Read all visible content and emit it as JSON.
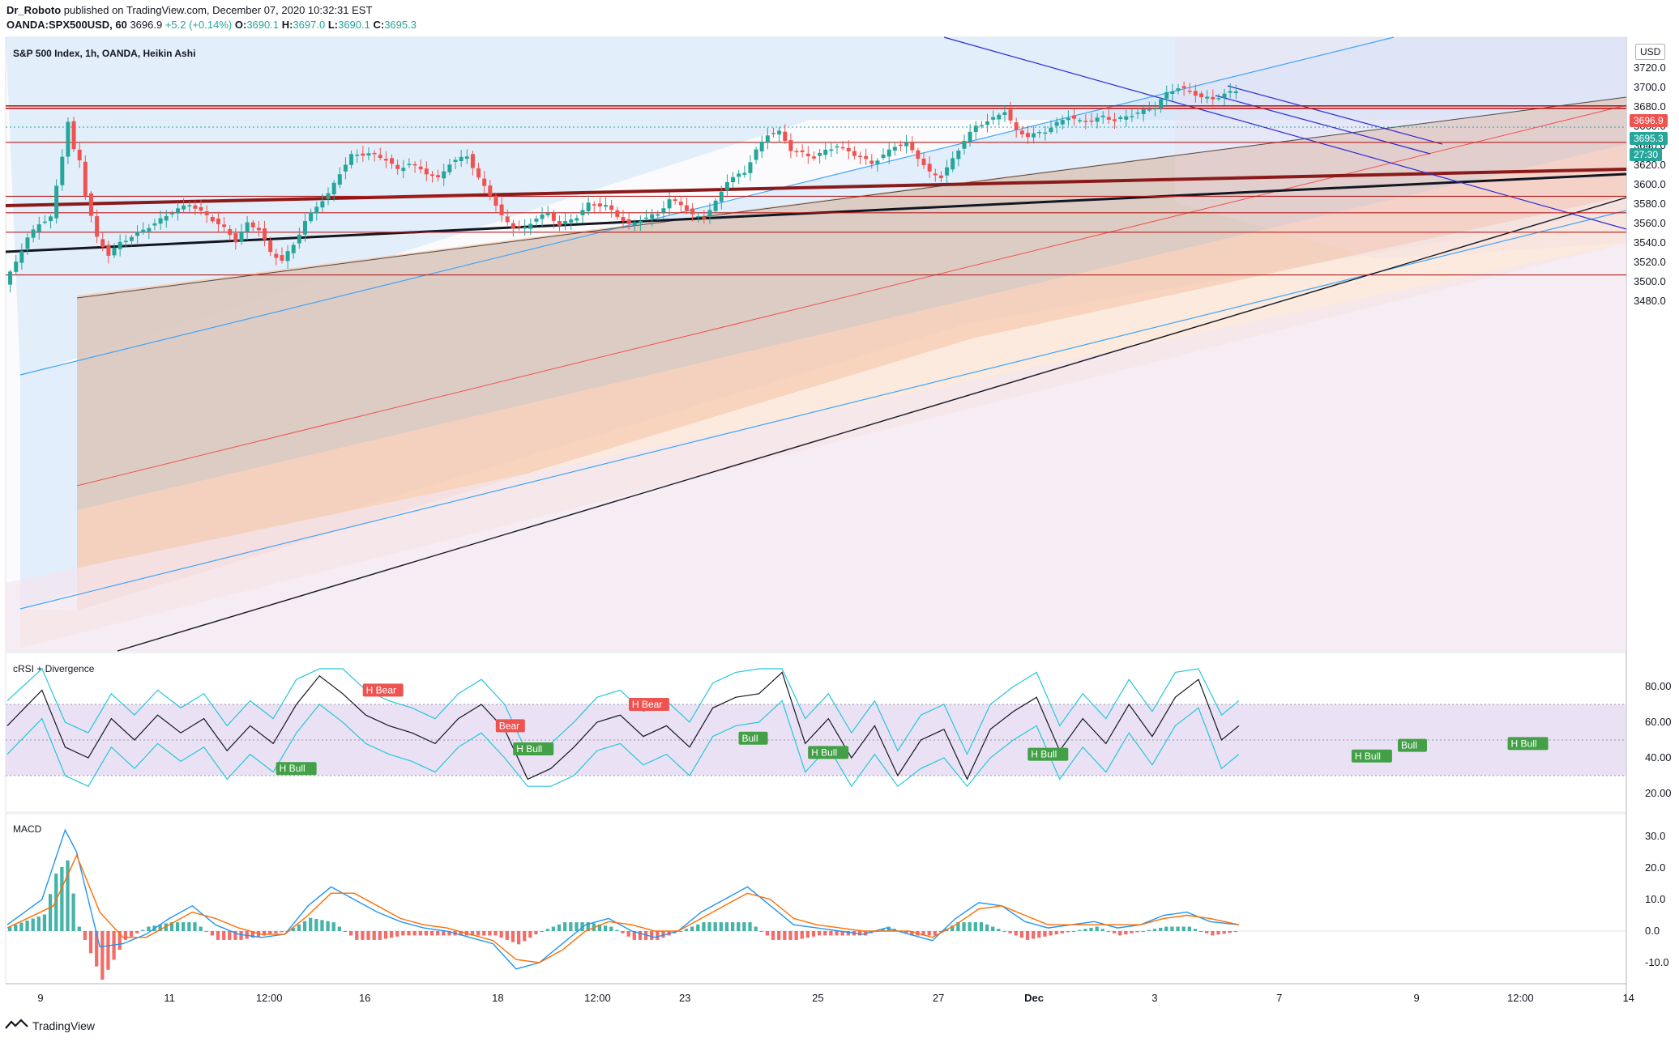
{
  "header": {
    "author": "Dr_Roboto",
    "published": "published on TradingView.com, December 07, 2020 10:32:31 EST",
    "symbol": "OANDA:SPX500USD, 60",
    "last": "3696.9",
    "change": "+5.2 (+0.14%)",
    "o_label": "O:",
    "o_value": "3690.1",
    "h_label": "H:",
    "h_value": "3697.0",
    "l_label": "L:",
    "l_value": "3690.1",
    "c_label": "C:",
    "c_value": "3695.3"
  },
  "main_pane": {
    "title": "S&P 500 Index, 1h, OANDA, Heikin Ashi",
    "currency": "USD",
    "price_ticks": [
      "3720.0",
      "3700.0",
      "3680.0",
      "3660.0",
      "3640.0",
      "3620.0",
      "3600.0",
      "3580.0",
      "3560.0",
      "3540.0",
      "3520.0",
      "3500.0",
      "3480.0"
    ],
    "price_tag_red": "3696.9",
    "price_tag_green": "3695.3",
    "countdown": "27:30",
    "horizontal_levels": [
      3681,
      3678.5,
      3643.5,
      3588,
      3571,
      3551,
      3507
    ]
  },
  "crsi_pane": {
    "title": "cRSI + Divergence",
    "ticks": [
      "80.00",
      "60.00",
      "40.00",
      "20.00"
    ],
    "labels": [
      {
        "text": "H Bear",
        "kind": "bear"
      },
      {
        "text": "Bear",
        "kind": "bear"
      },
      {
        "text": "H Bear",
        "kind": "bear"
      },
      {
        "text": "H Bull",
        "kind": "bull"
      },
      {
        "text": "H Bull",
        "kind": "bull"
      },
      {
        "text": "Bull",
        "kind": "bull"
      },
      {
        "text": "H Bull",
        "kind": "bull"
      },
      {
        "text": "H Bull",
        "kind": "bull"
      },
      {
        "text": "H Bull",
        "kind": "bull"
      },
      {
        "text": "Bull",
        "kind": "bull"
      },
      {
        "text": "H Bull",
        "kind": "bull"
      }
    ]
  },
  "macd_pane": {
    "title": "MACD",
    "ticks": [
      "30.0",
      "20.0",
      "10.0",
      "0.0",
      "-10.0"
    ]
  },
  "time_axis": [
    "9",
    "11",
    "12:00",
    "16",
    "18",
    "12:00",
    "23",
    "25",
    "27",
    "Dec",
    "3",
    "7",
    "9",
    "12:00",
    "14"
  ],
  "footer": {
    "brand": "TradingView"
  },
  "colors": {
    "bull": "#26a69a",
    "bear": "#ef5350",
    "level": "#b71c1c",
    "channel": "#42a5f5"
  },
  "chart_data": {
    "type": "candlestick",
    "title": "S&P 500 Index, 1h, OANDA, Heikin Ashi",
    "ylim": [
      3480,
      3725
    ],
    "x_tick_labels": [
      "9",
      "11",
      "12:00",
      "16",
      "18",
      "12:00",
      "23",
      "25",
      "27",
      "Dec",
      "3",
      "7",
      "9",
      "12:00",
      "14"
    ],
    "close_path": [
      [
        0,
        3497
      ],
      [
        4,
        3545
      ],
      [
        6,
        3560
      ],
      [
        8,
        3566
      ],
      [
        10,
        3630
      ],
      [
        11,
        3665
      ],
      [
        12,
        3635
      ],
      [
        13,
        3625
      ],
      [
        14,
        3590
      ],
      [
        16,
        3545
      ],
      [
        18,
        3528
      ],
      [
        20,
        3540
      ],
      [
        23,
        3550
      ],
      [
        26,
        3560
      ],
      [
        29,
        3572
      ],
      [
        32,
        3580
      ],
      [
        35,
        3568
      ],
      [
        38,
        3555
      ],
      [
        40,
        3542
      ],
      [
        42,
        3560
      ],
      [
        44,
        3554
      ],
      [
        46,
        3530
      ],
      [
        48,
        3522
      ],
      [
        50,
        3538
      ],
      [
        52,
        3562
      ],
      [
        54,
        3578
      ],
      [
        56,
        3590
      ],
      [
        58,
        3612
      ],
      [
        60,
        3630
      ],
      [
        63,
        3632
      ],
      [
        66,
        3626
      ],
      [
        68,
        3615
      ],
      [
        70,
        3622
      ],
      [
        73,
        3612
      ],
      [
        75,
        3606
      ],
      [
        77,
        3622
      ],
      [
        80,
        3630
      ],
      [
        82,
        3606
      ],
      [
        84,
        3590
      ],
      [
        86,
        3567
      ],
      [
        88,
        3556
      ],
      [
        90,
        3555
      ],
      [
        92,
        3566
      ],
      [
        94,
        3570
      ],
      [
        96,
        3558
      ],
      [
        99,
        3567
      ],
      [
        101,
        3580
      ],
      [
        104,
        3578
      ],
      [
        106,
        3568
      ],
      [
        108,
        3558
      ],
      [
        110,
        3564
      ],
      [
        113,
        3570
      ],
      [
        115,
        3584
      ],
      [
        117,
        3580
      ],
      [
        119,
        3568
      ],
      [
        121,
        3566
      ],
      [
        123,
        3582
      ],
      [
        125,
        3604
      ],
      [
        128,
        3613
      ],
      [
        130,
        3635
      ],
      [
        132,
        3652
      ],
      [
        134,
        3654
      ],
      [
        136,
        3636
      ],
      [
        138,
        3632
      ],
      [
        140,
        3628
      ],
      [
        142,
        3635
      ],
      [
        144,
        3640
      ],
      [
        146,
        3634
      ],
      [
        148,
        3628
      ],
      [
        150,
        3622
      ],
      [
        152,
        3630
      ],
      [
        154,
        3640
      ],
      [
        156,
        3642
      ],
      [
        158,
        3628
      ],
      [
        160,
        3612
      ],
      [
        162,
        3608
      ],
      [
        164,
        3626
      ],
      [
        166,
        3646
      ],
      [
        168,
        3660
      ],
      [
        171,
        3668
      ],
      [
        173,
        3676
      ],
      [
        175,
        3655
      ],
      [
        177,
        3650
      ],
      [
        180,
        3655
      ],
      [
        182,
        3663
      ],
      [
        184,
        3670
      ],
      [
        186,
        3665
      ],
      [
        188,
        3666
      ],
      [
        190,
        3670
      ],
      [
        192,
        3666
      ],
      [
        195,
        3672
      ],
      [
        197,
        3676
      ],
      [
        199,
        3680
      ],
      [
        201,
        3694
      ],
      [
        203,
        3700
      ],
      [
        205,
        3696
      ],
      [
        207,
        3690
      ],
      [
        209,
        3688
      ],
      [
        211,
        3693
      ],
      [
        213,
        3697
      ]
    ],
    "x_max": 280,
    "crsi": [
      [
        0,
        58
      ],
      [
        6,
        78
      ],
      [
        10,
        46
      ],
      [
        14,
        40
      ],
      [
        18,
        62
      ],
      [
        22,
        50
      ],
      [
        26,
        64
      ],
      [
        30,
        54
      ],
      [
        34,
        62
      ],
      [
        38,
        44
      ],
      [
        42,
        58
      ],
      [
        46,
        48
      ],
      [
        50,
        70
      ],
      [
        54,
        86
      ],
      [
        58,
        76
      ],
      [
        62,
        64
      ],
      [
        66,
        58
      ],
      [
        70,
        54
      ],
      [
        74,
        48
      ],
      [
        78,
        62
      ],
      [
        82,
        70
      ],
      [
        86,
        56
      ],
      [
        90,
        28
      ],
      [
        94,
        34
      ],
      [
        98,
        46
      ],
      [
        102,
        60
      ],
      [
        106,
        64
      ],
      [
        110,
        52
      ],
      [
        114,
        58
      ],
      [
        118,
        46
      ],
      [
        122,
        68
      ],
      [
        126,
        74
      ],
      [
        130,
        76
      ],
      [
        134,
        88
      ],
      [
        138,
        48
      ],
      [
        142,
        62
      ],
      [
        146,
        40
      ],
      [
        150,
        58
      ],
      [
        154,
        30
      ],
      [
        158,
        50
      ],
      [
        162,
        56
      ],
      [
        166,
        28
      ],
      [
        170,
        56
      ],
      [
        174,
        66
      ],
      [
        178,
        74
      ],
      [
        182,
        44
      ],
      [
        186,
        62
      ],
      [
        190,
        48
      ],
      [
        194,
        70
      ],
      [
        198,
        52
      ],
      [
        202,
        74
      ],
      [
        206,
        84
      ],
      [
        210,
        50
      ],
      [
        213,
        58
      ]
    ],
    "macd": [
      [
        0,
        2
      ],
      [
        6,
        10
      ],
      [
        10,
        32
      ],
      [
        12,
        25
      ],
      [
        16,
        -5
      ],
      [
        20,
        -4
      ],
      [
        24,
        -1
      ],
      [
        28,
        4
      ],
      [
        32,
        8
      ],
      [
        36,
        2
      ],
      [
        40,
        -1
      ],
      [
        44,
        -2
      ],
      [
        48,
        -1
      ],
      [
        52,
        8
      ],
      [
        56,
        14
      ],
      [
        60,
        10
      ],
      [
        64,
        6
      ],
      [
        68,
        3
      ],
      [
        72,
        1
      ],
      [
        76,
        0
      ],
      [
        80,
        -2
      ],
      [
        84,
        -4
      ],
      [
        88,
        -12
      ],
      [
        92,
        -10
      ],
      [
        96,
        -4
      ],
      [
        100,
        2
      ],
      [
        104,
        4
      ],
      [
        108,
        0
      ],
      [
        112,
        -2
      ],
      [
        116,
        0
      ],
      [
        120,
        6
      ],
      [
        124,
        10
      ],
      [
        128,
        14
      ],
      [
        132,
        8
      ],
      [
        136,
        2
      ],
      [
        140,
        1
      ],
      [
        144,
        0
      ],
      [
        148,
        -1
      ],
      [
        152,
        1
      ],
      [
        156,
        -1
      ],
      [
        160,
        -3
      ],
      [
        164,
        4
      ],
      [
        168,
        9
      ],
      [
        172,
        8
      ],
      [
        176,
        3
      ],
      [
        180,
        1
      ],
      [
        184,
        2
      ],
      [
        188,
        3
      ],
      [
        192,
        1
      ],
      [
        196,
        2
      ],
      [
        200,
        5
      ],
      [
        204,
        6
      ],
      [
        208,
        3
      ],
      [
        213,
        2
      ]
    ],
    "signal": [
      [
        0,
        1
      ],
      [
        8,
        8
      ],
      [
        12,
        24
      ],
      [
        16,
        6
      ],
      [
        20,
        -2
      ],
      [
        24,
        -2
      ],
      [
        28,
        2
      ],
      [
        32,
        6
      ],
      [
        36,
        4
      ],
      [
        40,
        1
      ],
      [
        44,
        -1
      ],
      [
        48,
        -1
      ],
      [
        52,
        5
      ],
      [
        56,
        12
      ],
      [
        60,
        12
      ],
      [
        64,
        8
      ],
      [
        68,
        4
      ],
      [
        72,
        2
      ],
      [
        76,
        1
      ],
      [
        80,
        -1
      ],
      [
        84,
        -3
      ],
      [
        88,
        -9
      ],
      [
        92,
        -10
      ],
      [
        96,
        -6
      ],
      [
        100,
        0
      ],
      [
        104,
        3
      ],
      [
        108,
        2
      ],
      [
        112,
        0
      ],
      [
        116,
        0
      ],
      [
        120,
        4
      ],
      [
        124,
        8
      ],
      [
        128,
        12
      ],
      [
        132,
        10
      ],
      [
        136,
        4
      ],
      [
        140,
        2
      ],
      [
        144,
        1
      ],
      [
        148,
        0
      ],
      [
        152,
        0
      ],
      [
        156,
        0
      ],
      [
        160,
        -2
      ],
      [
        164,
        2
      ],
      [
        168,
        7
      ],
      [
        172,
        8
      ],
      [
        176,
        5
      ],
      [
        180,
        2
      ],
      [
        184,
        2
      ],
      [
        188,
        2
      ],
      [
        192,
        2
      ],
      [
        196,
        2
      ],
      [
        200,
        4
      ],
      [
        204,
        5
      ],
      [
        208,
        4
      ],
      [
        213,
        2
      ]
    ]
  }
}
